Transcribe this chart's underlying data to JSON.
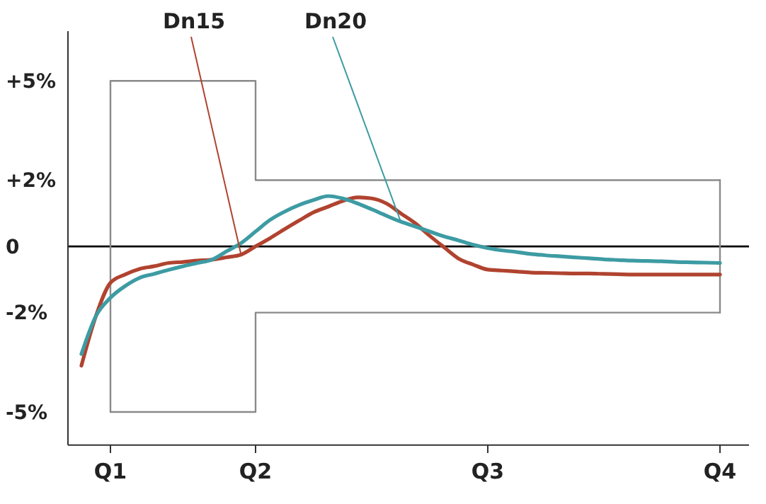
{
  "chart_data": {
    "type": "line",
    "ylim": [
      -6,
      6.5
    ],
    "categories": [
      null,
      null,
      "Q1",
      null,
      null,
      null,
      null,
      null,
      null,
      null,
      null,
      null,
      "Q2",
      null,
      null,
      null,
      null,
      null,
      null,
      null,
      null,
      null,
      null,
      null,
      null,
      null,
      null,
      null,
      "Q3",
      null,
      null,
      null,
      null,
      null,
      null,
      null,
      null,
      null,
      null,
      null,
      null,
      null,
      null,
      null,
      "Q4"
    ],
    "yticks": [
      {
        "value": 5,
        "label": "+5%"
      },
      {
        "value": 2,
        "label": "+2%"
      },
      {
        "value": 0,
        "label": "0"
      },
      {
        "value": -2,
        "label": "-2%"
      },
      {
        "value": -5,
        "label": "-5%"
      }
    ],
    "grid": false,
    "line_style": "solid",
    "ref_lines": [
      {
        "axis": "y",
        "value": 0,
        "color": "#000000"
      }
    ],
    "series": [
      {
        "type": "step",
        "color": "#8a8a8a",
        "values": [
          null,
          null,
          5,
          5,
          5,
          5,
          5,
          5,
          5,
          5,
          5,
          5,
          2,
          2,
          2,
          2,
          2,
          2,
          2,
          2,
          2,
          2,
          2,
          2,
          2,
          2,
          2,
          2,
          2,
          2,
          2,
          2,
          2,
          2,
          2,
          2,
          2,
          2,
          2,
          2,
          2,
          2,
          2,
          2,
          2
        ]
      },
      {
        "type": "step",
        "color": "#8a8a8a",
        "values": [
          null,
          null,
          -5,
          -5,
          -5,
          -5,
          -5,
          -5,
          -5,
          -5,
          -5,
          -5,
          -2,
          -2,
          -2,
          -2,
          -2,
          -2,
          -2,
          -2,
          -2,
          -2,
          -2,
          -2,
          -2,
          -2,
          -2,
          -2,
          -2,
          -2,
          -2,
          -2,
          -2,
          -2,
          -2,
          -2,
          -2,
          -2,
          -2,
          -2,
          -2,
          -2,
          -2,
          -2,
          -2
        ]
      },
      {
        "color": "#8a8a8a",
        "x": [
          "Q1",
          "Q1"
        ],
        "values": [
          5,
          -5
        ]
      },
      {
        "color": "#8a8a8a",
        "x": [
          "Q4",
          "Q4"
        ],
        "values": [
          2,
          -2
        ]
      },
      {
        "name": "Dn15",
        "color": "#b0432f",
        "values": [
          -3.6,
          -2.1,
          -1.1,
          -0.85,
          -0.68,
          -0.6,
          -0.5,
          -0.47,
          -0.43,
          -0.4,
          -0.33,
          -0.25,
          0,
          0.25,
          0.52,
          0.78,
          1.03,
          1.2,
          1.37,
          1.48,
          1.45,
          1.3,
          1,
          0.7,
          0.32,
          -0.03,
          -0.37,
          -0.55,
          -0.7,
          -0.73,
          -0.76,
          -0.79,
          -0.8,
          -0.81,
          -0.82,
          -0.82,
          -0.83,
          -0.84,
          -0.85,
          -0.85,
          -0.85,
          -0.85,
          -0.85,
          -0.85,
          -0.85
        ]
      },
      {
        "name": "Dn20",
        "color": "#3d9ba3",
        "values": [
          -3.25,
          -2.1,
          -1.55,
          -1.2,
          -0.95,
          -0.83,
          -0.71,
          -0.6,
          -0.5,
          -0.4,
          -0.15,
          0.1,
          0.45,
          0.8,
          1.05,
          1.25,
          1.4,
          1.52,
          1.45,
          1.3,
          1.12,
          0.93,
          0.75,
          0.6,
          0.45,
          0.3,
          0.18,
          0.05,
          -0.05,
          -0.12,
          -0.17,
          -0.23,
          -0.27,
          -0.3,
          -0.33,
          -0.36,
          -0.39,
          -0.41,
          -0.43,
          -0.44,
          -0.45,
          -0.47,
          -0.48,
          -0.49,
          -0.5
        ]
      }
    ]
  }
}
